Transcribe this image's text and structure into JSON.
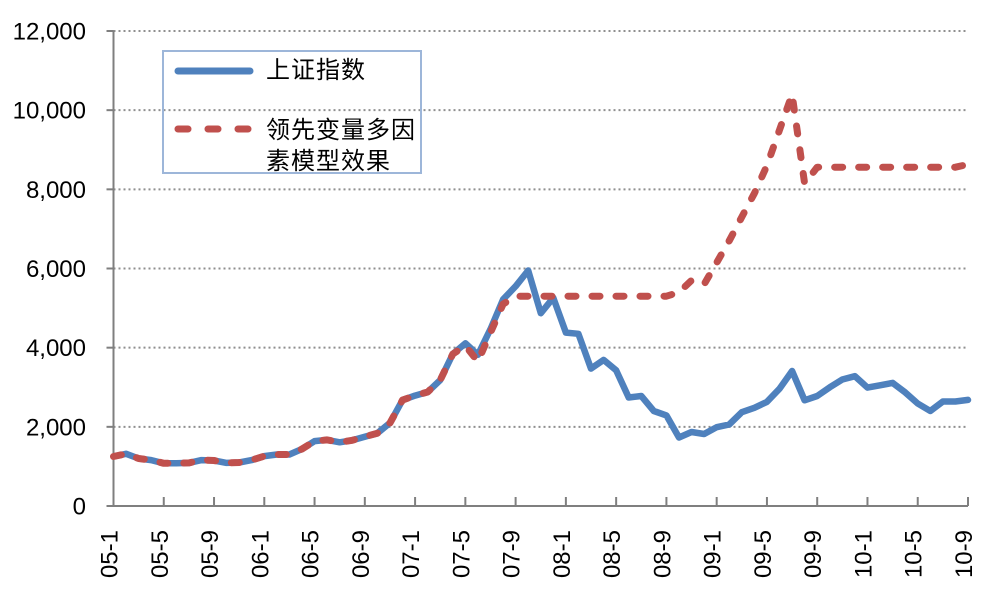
{
  "chart_data": {
    "type": "line",
    "title": "",
    "xlabel": "",
    "ylabel": "",
    "ylim": [
      0,
      12000
    ],
    "y_tick_step": 2000,
    "y_tick_labels": [
      "0",
      "2,000",
      "4,000",
      "6,000",
      "8,000",
      "10,000",
      "12,000"
    ],
    "x_tick_every": 4,
    "x_tick_labels": [
      "05-1",
      "05-5",
      "05-9",
      "06-1",
      "06-5",
      "06-9",
      "07-1",
      "07-5",
      "07-9",
      "08-1",
      "08-5",
      "08-9",
      "09-1",
      "09-5",
      "09-9",
      "10-1",
      "10-5",
      "10-9"
    ],
    "x": [
      "05-1",
      "05-2",
      "05-3",
      "05-4",
      "05-5",
      "05-6",
      "05-7",
      "05-8",
      "05-9",
      "05-10",
      "05-11",
      "05-12",
      "06-1",
      "06-2",
      "06-3",
      "06-4",
      "06-5",
      "06-6",
      "06-7",
      "06-8",
      "06-9",
      "06-10",
      "06-11",
      "06-12",
      "07-1",
      "07-2",
      "07-3",
      "07-4",
      "07-5",
      "07-6",
      "07-7",
      "07-8",
      "07-9",
      "07-10",
      "07-11",
      "07-12",
      "08-1",
      "08-2",
      "08-3",
      "08-4",
      "08-5",
      "08-6",
      "08-7",
      "08-8",
      "08-9",
      "08-10",
      "08-11",
      "08-12",
      "09-1",
      "09-2",
      "09-3",
      "09-4",
      "09-5",
      "09-6",
      "09-7",
      "09-8",
      "09-9",
      "09-10",
      "09-11",
      "09-12",
      "10-1",
      "10-2",
      "10-3",
      "10-4",
      "10-5",
      "10-6",
      "10-7",
      "10-8",
      "10-9"
    ],
    "grid": "horizontal-dotted",
    "legend_position": "top-left-inside",
    "series": [
      {
        "name": "上证指数",
        "color": "#4F81BD",
        "style": "solid",
        "values": [
          1250,
          1320,
          1200,
          1160,
          1080,
          1080,
          1090,
          1160,
          1150,
          1090,
          1100,
          1160,
          1260,
          1300,
          1300,
          1440,
          1640,
          1670,
          1610,
          1660,
          1750,
          1840,
          2100,
          2675,
          2790,
          2880,
          3180,
          3840,
          4110,
          3820,
          4470,
          5220,
          5550,
          5950,
          4870,
          5260,
          4380,
          4350,
          3470,
          3690,
          3430,
          2740,
          2780,
          2400,
          2290,
          1730,
          1870,
          1820,
          1990,
          2060,
          2370,
          2480,
          2630,
          2960,
          3410,
          2670,
          2780,
          3000,
          3195,
          3280,
          2990,
          3050,
          3110,
          2870,
          2590,
          2400,
          2640,
          2640,
          2680
        ]
      },
      {
        "name": "领先变量多因素模型效果",
        "color": "#C0504D",
        "style": "dashed",
        "values": [
          1250,
          1320,
          1200,
          1160,
          1080,
          1080,
          1090,
          1160,
          1150,
          1090,
          1100,
          1160,
          1260,
          1300,
          1300,
          1440,
          1640,
          1670,
          1610,
          1660,
          1750,
          1840,
          2100,
          2675,
          2790,
          2880,
          3180,
          3840,
          4050,
          3650,
          4380,
          5100,
          5300,
          5300,
          5300,
          5300,
          5300,
          5300,
          5300,
          5300,
          5300,
          5300,
          5300,
          5300,
          5300,
          5400,
          5700,
          5600,
          6150,
          6700,
          7300,
          7900,
          8600,
          9500,
          10400,
          8150,
          8560,
          8560,
          8560,
          8560,
          8560,
          8560,
          8560,
          8560,
          8560,
          8560,
          8560,
          8560,
          8630
        ]
      }
    ]
  }
}
